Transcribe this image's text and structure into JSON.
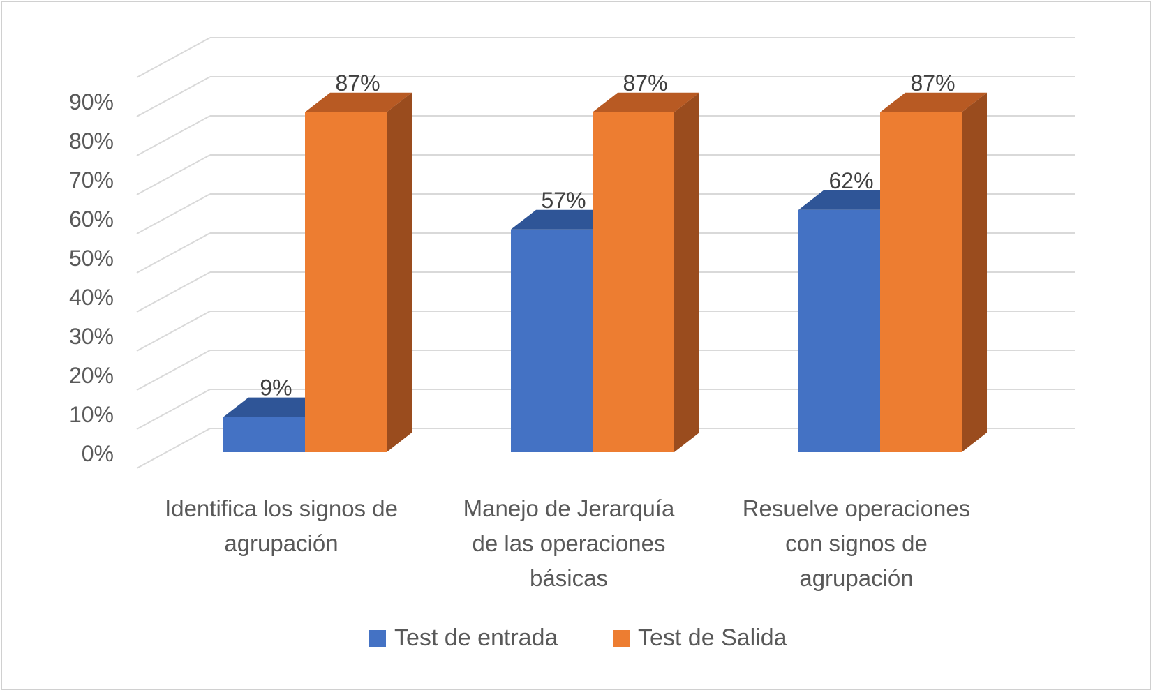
{
  "chart_data": {
    "type": "bar",
    "categories": [
      [
        "Identifica los signos de",
        "agrupación"
      ],
      [
        "Manejo de Jerarquía",
        "de las operaciones",
        "básicas"
      ],
      [
        "Resuelve operaciones",
        "con signos de",
        "agrupación"
      ]
    ],
    "series": [
      {
        "name": "Test de entrada",
        "values": [
          9,
          57,
          62
        ],
        "labels": [
          "9%",
          "57%",
          "62%"
        ],
        "color": "#4472c4",
        "top_color": "#2f5597"
      },
      {
        "name": "Test de Salida",
        "values": [
          87,
          87,
          87
        ],
        "labels": [
          "87%",
          "87%",
          "87%"
        ],
        "color": "#ed7d31",
        "top_color": "#b85a23",
        "side_color": "#9a4c1e"
      }
    ],
    "ylim": [
      0,
      90
    ],
    "yticks": [
      "0%",
      "10%",
      "20%",
      "30%",
      "40%",
      "50%",
      "60%",
      "70%",
      "80%",
      "90%"
    ],
    "grid": true,
    "legend_position": "bottom",
    "style": "3d-clustered-column"
  }
}
